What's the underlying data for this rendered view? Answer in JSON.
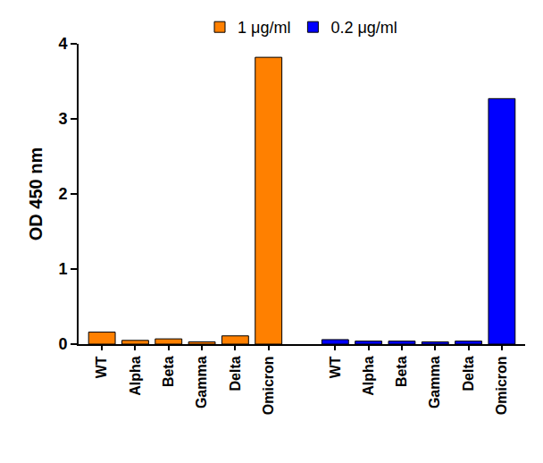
{
  "chart_data": {
    "type": "bar",
    "y_label": "OD 450 nm",
    "categories": [
      "WT",
      "Alpha",
      "Beta",
      "Gamma",
      "Delta",
      "Omicron"
    ],
    "series": [
      {
        "name": "1 μg/ml",
        "color": "#ff8000",
        "values": [
          0.16,
          0.05,
          0.07,
          0.03,
          0.11,
          3.82
        ]
      },
      {
        "name": "0.2 μg/ml",
        "color": "#0000ff",
        "values": [
          0.06,
          0.04,
          0.04,
          0.03,
          0.04,
          3.27
        ]
      }
    ],
    "ylim": [
      0,
      4
    ],
    "yticks": [
      0,
      1,
      2,
      3,
      4
    ],
    "grid": false,
    "legend": "top"
  }
}
